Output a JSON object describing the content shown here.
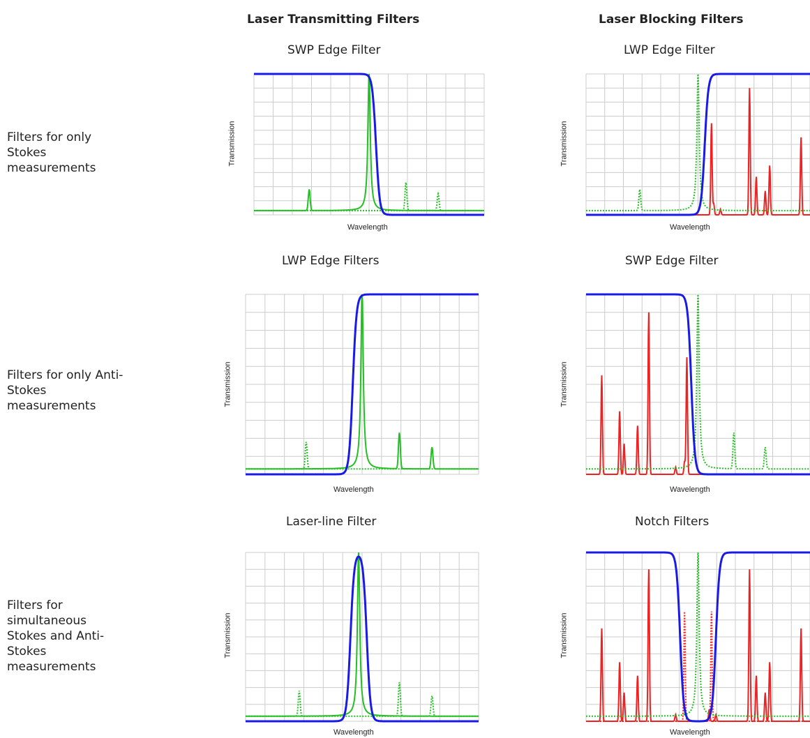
{
  "columns": {
    "left": "Laser Transmitting Filters",
    "right": "Laser Blocking Filters"
  },
  "rows": [
    {
      "label": "Filters for only\nStokes\nmeasurements"
    },
    {
      "label": "Filters for only Anti-\nStokes\nmeasurements"
    },
    {
      "label": "Filters for\nsimultaneous\nStokes and Anti-\nStokes\nmeasurements"
    }
  ],
  "colors": {
    "filter_curve": "#1a1ae6",
    "laser_line": "#22c022",
    "raman_signal": "#ee2222",
    "grid": "#cccccc"
  },
  "panels": [
    {
      "id": "p1",
      "title": "SWP Edge Filter",
      "ylabel": "Transmission",
      "xlabel": "Wavelength",
      "filter": {
        "type": "swp",
        "edge": 0.53
      },
      "laser": {
        "pos": 0.5,
        "height": 1.0
      },
      "green_peaks": [
        {
          "pos": 0.24,
          "h": 0.15,
          "style": "solid"
        },
        {
          "pos": 0.66,
          "h": 0.2,
          "style": "dotted"
        },
        {
          "pos": 0.8,
          "h": 0.12,
          "style": "dotted"
        }
      ],
      "red_peaks": []
    },
    {
      "id": "p2",
      "title": "LWP Edge Filter",
      "ylabel": "Transmission",
      "xlabel": "Wavelength",
      "filter": {
        "type": "lwp",
        "edge": 0.53
      },
      "laser": {
        "pos": 0.5,
        "height": 1.0,
        "style": "dotted"
      },
      "green_peaks": [
        {
          "pos": 0.24,
          "h": 0.15,
          "style": "dotted"
        }
      ],
      "red_peaks": [
        {
          "pos": 0.56,
          "h": 0.65
        },
        {
          "pos": 0.57,
          "h": 0.08
        },
        {
          "pos": 0.6,
          "h": 0.04
        },
        {
          "pos": 0.73,
          "h": 0.9
        },
        {
          "pos": 0.76,
          "h": 0.27
        },
        {
          "pos": 0.8,
          "h": 0.17
        },
        {
          "pos": 0.82,
          "h": 0.35
        },
        {
          "pos": 0.96,
          "h": 0.55
        }
      ]
    },
    {
      "id": "p3",
      "title": "LWP Edge Filters",
      "ylabel": "Transmission",
      "xlabel": "Wavelength",
      "filter": {
        "type": "lwp",
        "edge": 0.46
      },
      "laser": {
        "pos": 0.5,
        "height": 1.0
      },
      "green_peaks": [
        {
          "pos": 0.26,
          "h": 0.15,
          "style": "dotted"
        },
        {
          "pos": 0.66,
          "h": 0.2,
          "style": "solid"
        },
        {
          "pos": 0.8,
          "h": 0.12,
          "style": "solid"
        }
      ],
      "red_peaks": []
    },
    {
      "id": "p4",
      "title": "SWP Edge Filter",
      "ylabel": "Transmission",
      "xlabel": "Wavelength",
      "filter": {
        "type": "swp",
        "edge": 0.47
      },
      "laser": {
        "pos": 0.5,
        "height": 1.0,
        "style": "dotted"
      },
      "green_peaks": [
        {
          "pos": 0.66,
          "h": 0.2,
          "style": "dotted"
        },
        {
          "pos": 0.8,
          "h": 0.12,
          "style": "dotted"
        }
      ],
      "red_peaks": [
        {
          "pos": 0.07,
          "h": 0.55
        },
        {
          "pos": 0.15,
          "h": 0.35
        },
        {
          "pos": 0.17,
          "h": 0.17
        },
        {
          "pos": 0.23,
          "h": 0.27
        },
        {
          "pos": 0.28,
          "h": 0.9
        },
        {
          "pos": 0.4,
          "h": 0.04
        },
        {
          "pos": 0.44,
          "h": 0.07
        },
        {
          "pos": 0.45,
          "h": 0.65
        }
      ]
    },
    {
      "id": "p5",
      "title": "Laser-line Filter",
      "ylabel": "Transmission",
      "xlabel": "Wavelength",
      "filter": {
        "type": "band",
        "lo": 0.45,
        "hi": 0.52
      },
      "laser": {
        "pos": 0.485,
        "height": 1.0
      },
      "green_peaks": [
        {
          "pos": 0.23,
          "h": 0.15,
          "style": "dotted"
        },
        {
          "pos": 0.66,
          "h": 0.2,
          "style": "dotted"
        },
        {
          "pos": 0.8,
          "h": 0.12,
          "style": "dotted"
        }
      ],
      "red_peaks": []
    },
    {
      "id": "p6",
      "title": "Notch Filters",
      "ylabel": "Transmission",
      "xlabel": "Wavelength",
      "filter": {
        "type": "notch",
        "lo": 0.42,
        "hi": 0.58
      },
      "laser": {
        "pos": 0.5,
        "height": 1.0,
        "style": "dotted"
      },
      "green_peaks": [],
      "red_peaks": [
        {
          "pos": 0.07,
          "h": 0.55
        },
        {
          "pos": 0.15,
          "h": 0.35
        },
        {
          "pos": 0.17,
          "h": 0.17
        },
        {
          "pos": 0.23,
          "h": 0.27
        },
        {
          "pos": 0.28,
          "h": 0.9
        },
        {
          "pos": 0.4,
          "h": 0.04
        },
        {
          "pos": 0.55,
          "h": 0.07
        },
        {
          "pos": 0.58,
          "h": 0.04
        },
        {
          "pos": 0.73,
          "h": 0.9
        },
        {
          "pos": 0.76,
          "h": 0.27
        },
        {
          "pos": 0.8,
          "h": 0.17
        },
        {
          "pos": 0.82,
          "h": 0.35
        },
        {
          "pos": 0.96,
          "h": 0.55
        }
      ],
      "red_dotted_peaks": [
        {
          "pos": 0.44,
          "h": 0.65
        },
        {
          "pos": 0.56,
          "h": 0.65
        }
      ]
    }
  ]
}
